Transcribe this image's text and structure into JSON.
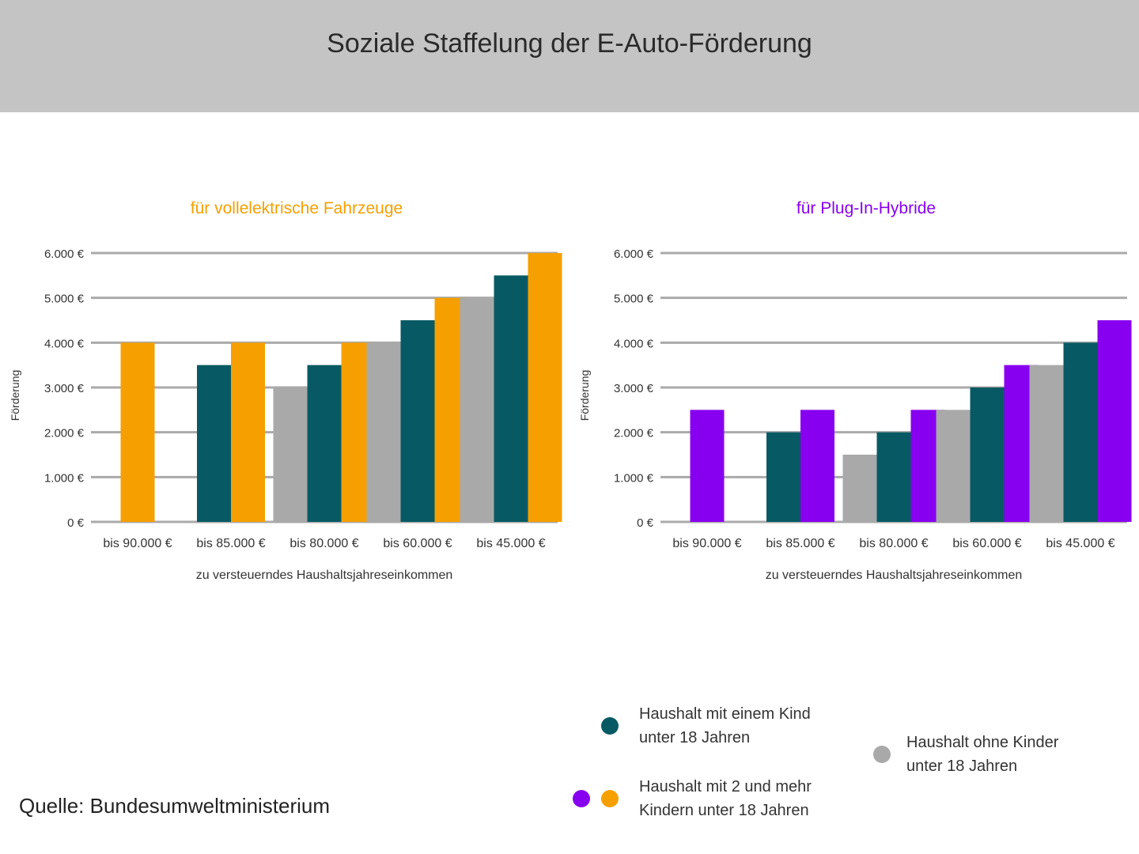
{
  "title": "Soziale Staffelung der E-Auto-Förderung",
  "colors": {
    "gray": "#a9a9a9",
    "teal": "#075a63",
    "orange": "#f5a000",
    "purple": "#8800f0"
  },
  "chart_data": [
    {
      "type": "bar",
      "title": "für vollelektrische Fahrzeuge",
      "title_color": "#f5a000",
      "xlabel": "zu versteuerndes Haushaltsjahreseinkommen",
      "ylabel": "Förderung",
      "ylim": [
        0,
        6000
      ],
      "yticks": [
        "0 €",
        "1.000 €",
        "2.000 €",
        "3.000 €",
        "4.000 €",
        "5.000 €",
        "6.000 €"
      ],
      "grid": true,
      "categories": [
        "bis 90.000 €",
        "bis 85.000 €",
        "bis 80.000 €",
        "bis 60.000 €",
        "bis 45.000 €"
      ],
      "series": [
        {
          "name": "Haushalt ohne Kinder unter 18 Jahren",
          "color": "#a9a9a9",
          "values": [
            null,
            null,
            3000,
            4000,
            5000
          ]
        },
        {
          "name": "Haushalt mit einem Kind unter 18 Jahren",
          "color": "#075a63",
          "values": [
            null,
            3500,
            3500,
            4500,
            5500
          ]
        },
        {
          "name": "Haushalt mit 2 und mehr Kindern unter 18 Jahren",
          "color": "#f5a000",
          "values": [
            4000,
            4000,
            4000,
            5000,
            6000
          ]
        }
      ]
    },
    {
      "type": "bar",
      "title": "für Plug-In-Hybride",
      "title_color": "#8800f0",
      "xlabel": "zu versteuerndes Haushaltsjahreseinkommen",
      "ylabel": "Förderung",
      "ylim": [
        0,
        6000
      ],
      "yticks": [
        "0 €",
        "1.000 €",
        "2.000 €",
        "3.000 €",
        "4.000 €",
        "5.000 €",
        "6.000 €"
      ],
      "grid": true,
      "categories": [
        "bis 90.000 €",
        "bis 85.000 €",
        "bis 80.000 €",
        "bis 60.000 €",
        "bis 45.000 €"
      ],
      "series": [
        {
          "name": "Haushalt ohne Kinder unter 18 Jahren",
          "color": "#a9a9a9",
          "values": [
            null,
            null,
            1500,
            2500,
            3500
          ]
        },
        {
          "name": "Haushalt mit einem Kind unter 18 Jahren",
          "color": "#075a63",
          "values": [
            null,
            2000,
            2000,
            3000,
            4000
          ]
        },
        {
          "name": "Haushalt mit 2 und mehr Kindern unter 18 Jahren",
          "color": "#8800f0",
          "values": [
            2500,
            2500,
            2500,
            3500,
            4500
          ]
        }
      ]
    }
  ],
  "legend": {
    "one_child": "Haushalt mit einem Kind unter 18 Jahren",
    "no_children": "Haushalt ohne Kinder unter 18 Jahren",
    "two_plus": "Haushalt mit 2 und mehr Kindern unter 18 Jahren"
  },
  "source": "Quelle: Bundesumweltministerium"
}
